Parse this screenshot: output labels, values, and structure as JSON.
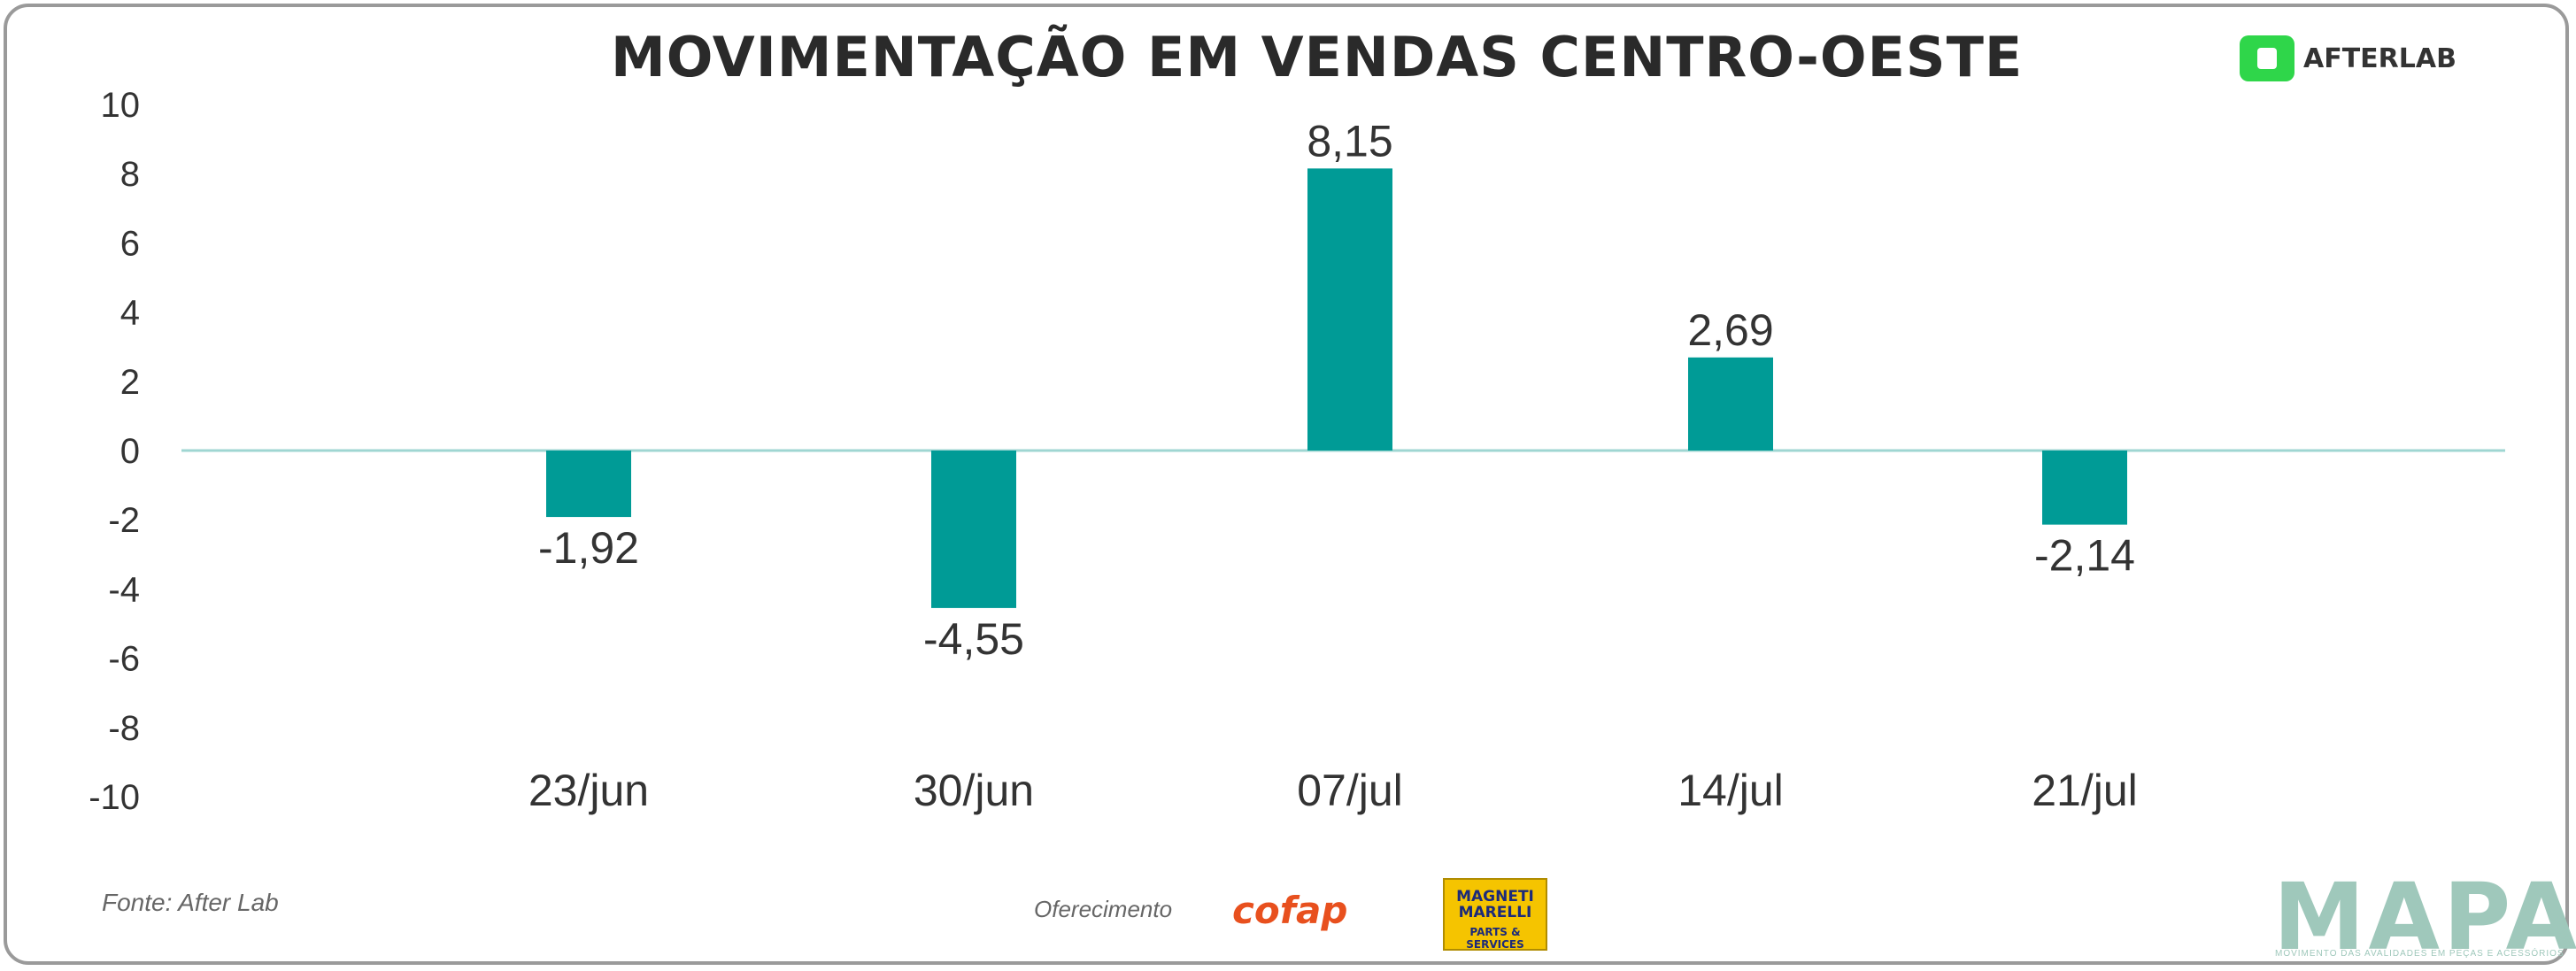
{
  "title": "MOVIMENTAÇÃO EM VENDAS CENTRO-OESTE",
  "brand": {
    "name": "AFTERLAB",
    "color": "#2fd64a"
  },
  "footer": {
    "source": "Fonte: After Lab",
    "sponsor_label": "Oferecimento",
    "sponsors": [
      "cofap",
      "MAGNETI MARELLI",
      "PARTS & SERVICES"
    ],
    "mapa": "MAPA",
    "mapa_tagline": "MOVIMENTO DAS AVALIDADES EM PEÇAS E ACESSÓRIOS"
  },
  "chart_data": {
    "type": "bar",
    "title": "MOVIMENTAÇÃO EM VENDAS CENTRO-OESTE",
    "categories": [
      "23/jun",
      "30/jun",
      "07/jul",
      "14/jul",
      "21/jul"
    ],
    "values": [
      -1.92,
      -4.55,
      8.15,
      2.69,
      -2.14
    ],
    "data_labels": [
      "-1,92",
      "-4,55",
      "8,15",
      "2,69",
      "-2,14"
    ],
    "yticks": [
      10,
      8,
      6,
      4,
      2,
      0,
      -2,
      -4,
      -6,
      -8,
      -10
    ],
    "ylim": [
      -10,
      10
    ],
    "xlabel": "",
    "ylabel": "",
    "bar_color": "#009b96",
    "zero_line_color": "#9fd6d2",
    "grid": false,
    "legend": "none"
  }
}
